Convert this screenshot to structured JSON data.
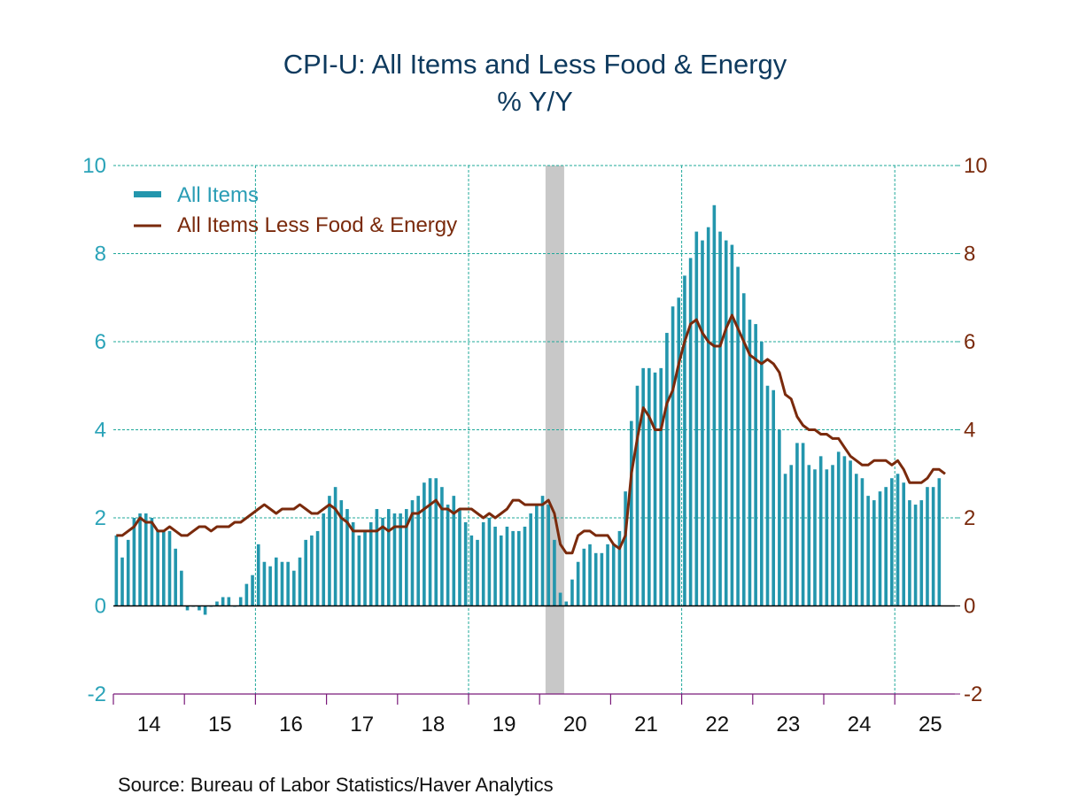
{
  "chart_data": {
    "type": "bar+line",
    "title": "CPI-U: All Items and Less Food & Energy",
    "subtitle": "% Y/Y",
    "xlabel": "",
    "ylabel_left": "",
    "ylabel_right": "",
    "ylim": [
      -2,
      10
    ],
    "yticks": [
      -2,
      0,
      2,
      4,
      6,
      8,
      10
    ],
    "ytick_labels": [
      "-2",
      "0",
      "2",
      "4",
      "6",
      "8",
      "10"
    ],
    "x_start": "2014-01",
    "x_end": "2025-08",
    "frequency": "monthly",
    "xtick_labels": [
      "14",
      "15",
      "16",
      "17",
      "18",
      "19",
      "20",
      "21",
      "22",
      "23",
      "24",
      "25"
    ],
    "grid": true,
    "legend_position": "top-left",
    "recession_shading": {
      "start": "2020-02",
      "end": "2020-04",
      "color": "#c8c8c8"
    },
    "series": [
      {
        "name": "All Items",
        "type": "bar",
        "color": "#2396ad",
        "values": [
          1.6,
          1.1,
          1.5,
          2.0,
          2.1,
          2.1,
          2.0,
          1.7,
          1.7,
          1.7,
          1.3,
          0.8,
          -0.1,
          0.0,
          -0.1,
          -0.2,
          0.0,
          0.1,
          0.2,
          0.2,
          0.0,
          0.2,
          0.5,
          0.7,
          1.4,
          1.0,
          0.9,
          1.1,
          1.0,
          1.0,
          0.8,
          1.1,
          1.5,
          1.6,
          1.7,
          2.1,
          2.5,
          2.7,
          2.4,
          2.2,
          1.9,
          1.6,
          1.7,
          1.9,
          2.2,
          2.0,
          2.2,
          2.1,
          2.1,
          2.2,
          2.4,
          2.5,
          2.8,
          2.9,
          2.9,
          2.7,
          2.3,
          2.5,
          2.2,
          1.9,
          1.6,
          1.5,
          1.9,
          2.0,
          1.8,
          1.6,
          1.8,
          1.7,
          1.7,
          1.8,
          2.1,
          2.3,
          2.5,
          2.3,
          1.5,
          0.3,
          0.1,
          0.6,
          1.0,
          1.3,
          1.4,
          1.2,
          1.2,
          1.4,
          1.4,
          1.7,
          2.6,
          4.2,
          5.0,
          5.4,
          5.4,
          5.3,
          5.4,
          6.2,
          6.8,
          7.0,
          7.5,
          7.9,
          8.5,
          8.3,
          8.6,
          9.1,
          8.5,
          8.3,
          8.2,
          7.7,
          7.1,
          6.5,
          6.4,
          6.0,
          5.0,
          4.9,
          4.0,
          3.0,
          3.2,
          3.7,
          3.7,
          3.2,
          3.1,
          3.4,
          3.1,
          3.2,
          3.5,
          3.4,
          3.3,
          3.0,
          2.9,
          2.5,
          2.4,
          2.6,
          2.7,
          2.9,
          3.0,
          2.8,
          2.4,
          2.3,
          2.4,
          2.7,
          2.7,
          2.9
        ]
      },
      {
        "name": "All Items Less Food & Energy",
        "type": "line",
        "color": "#7a2a0c",
        "values": [
          1.6,
          1.6,
          1.7,
          1.8,
          2.0,
          1.9,
          1.9,
          1.7,
          1.7,
          1.8,
          1.7,
          1.6,
          1.6,
          1.7,
          1.8,
          1.8,
          1.7,
          1.8,
          1.8,
          1.8,
          1.9,
          1.9,
          2.0,
          2.1,
          2.2,
          2.3,
          2.2,
          2.1,
          2.2,
          2.2,
          2.2,
          2.3,
          2.2,
          2.1,
          2.1,
          2.2,
          2.3,
          2.2,
          2.0,
          1.9,
          1.7,
          1.7,
          1.7,
          1.7,
          1.7,
          1.8,
          1.7,
          1.8,
          1.8,
          1.8,
          2.1,
          2.1,
          2.2,
          2.3,
          2.4,
          2.2,
          2.2,
          2.1,
          2.2,
          2.2,
          2.2,
          2.1,
          2.0,
          2.1,
          2.0,
          2.1,
          2.2,
          2.4,
          2.4,
          2.3,
          2.3,
          2.3,
          2.3,
          2.4,
          2.1,
          1.4,
          1.2,
          1.2,
          1.6,
          1.7,
          1.7,
          1.6,
          1.6,
          1.6,
          1.4,
          1.3,
          1.6,
          3.0,
          3.8,
          4.5,
          4.3,
          4.0,
          4.0,
          4.6,
          4.9,
          5.5,
          6.0,
          6.4,
          6.5,
          6.2,
          6.0,
          5.9,
          5.9,
          6.3,
          6.6,
          6.3,
          6.0,
          5.7,
          5.6,
          5.5,
          5.6,
          5.5,
          5.3,
          4.8,
          4.7,
          4.3,
          4.1,
          4.0,
          4.0,
          3.9,
          3.9,
          3.8,
          3.8,
          3.6,
          3.4,
          3.3,
          3.2,
          3.2,
          3.3,
          3.3,
          3.3,
          3.2,
          3.3,
          3.1,
          2.8,
          2.8,
          2.8,
          2.9,
          3.1,
          3.1,
          3.0
        ]
      }
    ]
  },
  "footer": {
    "source": "Source:  Bureau of Labor Statistics/Haver Analytics"
  }
}
